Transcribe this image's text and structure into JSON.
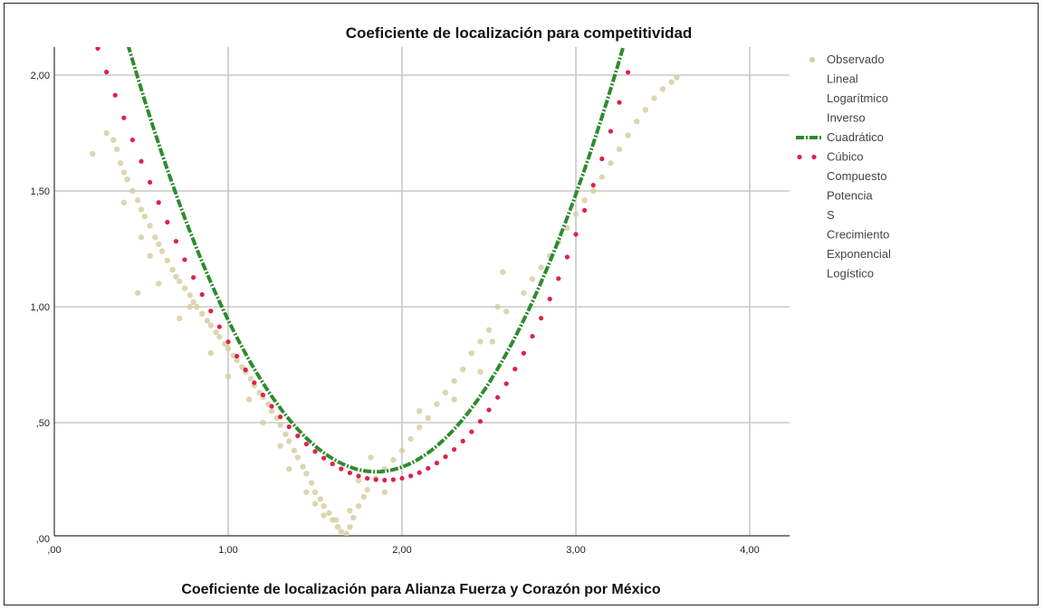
{
  "chart_data": {
    "type": "scatter",
    "title": "Coeficiente de localización para competitividad",
    "xlabel": "Coeficiente de  localización para Alianza Fuerza y Corazón por México",
    "ylabel": "",
    "xlim": [
      0,
      4.2
    ],
    "ylim": [
      0,
      2.1
    ],
    "x_ticks": [
      0,
      1,
      2,
      3,
      4
    ],
    "x_tick_labels": [
      ",00",
      "1,00",
      "2,00",
      "3,00",
      "4,00"
    ],
    "y_ticks": [
      0,
      0.5,
      1,
      1.5,
      2
    ],
    "y_tick_labels": [
      ",00",
      ",50",
      "1,00",
      "1,50",
      "2,00"
    ],
    "grid": true,
    "legend_position": "right",
    "colors": {
      "observed": "#d6cfa2",
      "quadratic": "#2e8b2e",
      "cubic": "#e0204a",
      "grid": "#c8c8c8",
      "axis": "#333333"
    },
    "legend": [
      {
        "label": "Observado",
        "marker": "dot"
      },
      {
        "label": "Lineal",
        "marker": "none"
      },
      {
        "label": "Logarítmico",
        "marker": "none"
      },
      {
        "label": "Inverso",
        "marker": "none"
      },
      {
        "label": "Cuadrático",
        "marker": "dashdot"
      },
      {
        "label": "Cúbico",
        "marker": "dotted"
      },
      {
        "label": "Compuesto",
        "marker": "none"
      },
      {
        "label": "Potencia",
        "marker": "none"
      },
      {
        "label": "S",
        "marker": "none"
      },
      {
        "label": "Crecimiento",
        "marker": "none"
      },
      {
        "label": "Exponencial",
        "marker": "none"
      },
      {
        "label": "Logístico",
        "marker": "none"
      }
    ],
    "series": [
      {
        "name": "Observado",
        "kind": "scatter",
        "points": [
          [
            0.22,
            1.66
          ],
          [
            0.3,
            1.75
          ],
          [
            0.34,
            1.72
          ],
          [
            0.36,
            1.68
          ],
          [
            0.38,
            1.62
          ],
          [
            0.4,
            1.58
          ],
          [
            0.42,
            1.55
          ],
          [
            0.45,
            1.5
          ],
          [
            0.48,
            1.46
          ],
          [
            0.5,
            1.42
          ],
          [
            0.5,
            1.3
          ],
          [
            0.52,
            1.39
          ],
          [
            0.55,
            1.35
          ],
          [
            0.58,
            1.3
          ],
          [
            0.6,
            1.27
          ],
          [
            0.62,
            1.24
          ],
          [
            0.65,
            1.2
          ],
          [
            0.68,
            1.16
          ],
          [
            0.7,
            1.13
          ],
          [
            0.72,
            1.11
          ],
          [
            0.75,
            1.08
          ],
          [
            0.78,
            1.05
          ],
          [
            0.8,
            1.02
          ],
          [
            0.82,
            1.0
          ],
          [
            0.85,
            0.97
          ],
          [
            0.88,
            0.94
          ],
          [
            0.9,
            0.92
          ],
          [
            0.93,
            0.89
          ],
          [
            0.95,
            0.87
          ],
          [
            0.98,
            0.84
          ],
          [
            1.0,
            0.82
          ],
          [
            1.03,
            0.79
          ],
          [
            1.05,
            0.77
          ],
          [
            1.08,
            0.74
          ],
          [
            1.1,
            0.72
          ],
          [
            1.13,
            0.69
          ],
          [
            1.15,
            0.66
          ],
          [
            1.18,
            0.63
          ],
          [
            1.2,
            0.61
          ],
          [
            1.23,
            0.58
          ],
          [
            1.25,
            0.55
          ],
          [
            1.28,
            0.52
          ],
          [
            1.3,
            0.49
          ],
          [
            1.33,
            0.45
          ],
          [
            1.35,
            0.42
          ],
          [
            1.38,
            0.38
          ],
          [
            1.4,
            0.35
          ],
          [
            1.43,
            0.31
          ],
          [
            1.45,
            0.28
          ],
          [
            1.48,
            0.24
          ],
          [
            1.5,
            0.2
          ],
          [
            1.53,
            0.17
          ],
          [
            1.55,
            0.14
          ],
          [
            1.58,
            0.11
          ],
          [
            1.6,
            0.08
          ],
          [
            1.63,
            0.05
          ],
          [
            1.65,
            0.03
          ],
          [
            1.68,
            0.02
          ],
          [
            1.7,
            0.05
          ],
          [
            1.72,
            0.09
          ],
          [
            1.75,
            0.14
          ],
          [
            1.78,
            0.18
          ],
          [
            1.8,
            0.21
          ],
          [
            1.85,
            0.26
          ],
          [
            1.9,
            0.3
          ],
          [
            1.95,
            0.34
          ],
          [
            2.0,
            0.38
          ],
          [
            2.05,
            0.43
          ],
          [
            2.1,
            0.48
          ],
          [
            2.15,
            0.52
          ],
          [
            2.2,
            0.58
          ],
          [
            2.25,
            0.63
          ],
          [
            2.3,
            0.68
          ],
          [
            2.35,
            0.73
          ],
          [
            2.4,
            0.8
          ],
          [
            2.45,
            0.85
          ],
          [
            2.5,
            0.9
          ],
          [
            2.55,
            1.0
          ],
          [
            2.58,
            1.15
          ],
          [
            2.6,
            0.98
          ],
          [
            2.7,
            1.06
          ],
          [
            2.75,
            1.12
          ],
          [
            2.8,
            1.17
          ],
          [
            2.85,
            1.22
          ],
          [
            2.9,
            1.28
          ],
          [
            2.95,
            1.34
          ],
          [
            3.0,
            1.4
          ],
          [
            3.05,
            1.46
          ],
          [
            3.1,
            1.5
          ],
          [
            3.15,
            1.56
          ],
          [
            3.2,
            1.62
          ],
          [
            3.25,
            1.68
          ],
          [
            3.3,
            1.74
          ],
          [
            3.35,
            1.8
          ],
          [
            3.4,
            1.85
          ],
          [
            3.45,
            1.9
          ],
          [
            3.5,
            1.94
          ],
          [
            3.55,
            1.97
          ],
          [
            3.58,
            1.99
          ],
          [
            0.48,
            1.06
          ],
          [
            0.6,
            1.1
          ],
          [
            0.72,
            0.95
          ],
          [
            0.9,
            0.8
          ],
          [
            1.0,
            0.7
          ],
          [
            1.2,
            0.5
          ],
          [
            1.35,
            0.3
          ],
          [
            1.45,
            0.2
          ],
          [
            1.55,
            0.1
          ],
          [
            1.62,
            0.08
          ],
          [
            1.75,
            0.25
          ],
          [
            1.82,
            0.35
          ],
          [
            1.9,
            0.2
          ],
          [
            2.1,
            0.55
          ],
          [
            2.3,
            0.6
          ],
          [
            2.45,
            0.72
          ],
          [
            2.52,
            0.85
          ],
          [
            0.4,
            1.45
          ],
          [
            0.55,
            1.22
          ],
          [
            0.78,
            1.0
          ],
          [
            1.12,
            0.6
          ],
          [
            1.3,
            0.4
          ],
          [
            1.5,
            0.15
          ],
          [
            1.68,
            0.0
          ],
          [
            1.7,
            0.12
          ]
        ]
      },
      {
        "name": "Cuadrático",
        "kind": "line",
        "coefficients": {
          "a": 0.2883,
          "b": 0.9059,
          "c": 1.85
        }
      },
      {
        "name": "Cúbico",
        "kind": "line",
        "coefficients": {
          "a": 0.2519,
          "b": 0.8,
          "c": 1.9,
          "d": 0.07
        }
      }
    ]
  }
}
